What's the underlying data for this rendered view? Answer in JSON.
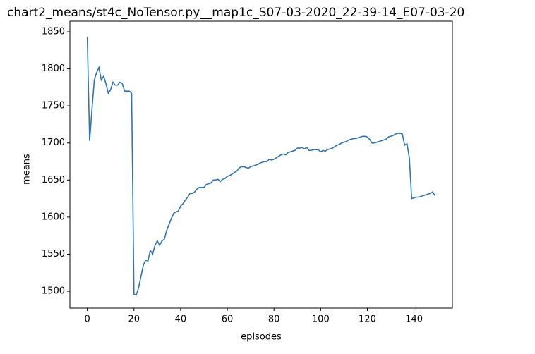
{
  "chart_data": {
    "type": "line",
    "title": "chart2_means/st4c_NoTensor.py__map1c_S07-03-2020_22-39-14_E07-03-20",
    "x_label": "episodes",
    "y_label": "means",
    "x": [
      0,
      1,
      2,
      3,
      4,
      5,
      6,
      7,
      8,
      9,
      10,
      11,
      12,
      13,
      14,
      15,
      16,
      17,
      18,
      19,
      20,
      21,
      22,
      23,
      24,
      25,
      26,
      27,
      28,
      29,
      30,
      31,
      32,
      33,
      34,
      35,
      36,
      37,
      38,
      39,
      40,
      41,
      42,
      43,
      44,
      45,
      46,
      47,
      48,
      49,
      50,
      51,
      52,
      53,
      54,
      55,
      56,
      57,
      58,
      59,
      60,
      61,
      62,
      63,
      64,
      65,
      66,
      67,
      68,
      69,
      70,
      71,
      72,
      73,
      74,
      75,
      76,
      77,
      78,
      79,
      80,
      81,
      82,
      83,
      84,
      85,
      86,
      87,
      88,
      89,
      90,
      91,
      92,
      93,
      94,
      95,
      96,
      97,
      98,
      99,
      100,
      101,
      102,
      103,
      104,
      105,
      106,
      107,
      108,
      109,
      110,
      111,
      112,
      113,
      114,
      115,
      116,
      117,
      118,
      119,
      120,
      121,
      122,
      123,
      124,
      125,
      126,
      127,
      128,
      129,
      130,
      131,
      132,
      133,
      134,
      135,
      136,
      137,
      138,
      139,
      140,
      141,
      142,
      143,
      144,
      145,
      146,
      147,
      148,
      149
    ],
    "values": [
      1843,
      1703,
      1745,
      1785,
      1795,
      1802,
      1785,
      1790,
      1780,
      1767,
      1772,
      1782,
      1778,
      1778,
      1782,
      1780,
      1770,
      1770,
      1770,
      1767,
      1496,
      1495,
      1505,
      1520,
      1535,
      1542,
      1541,
      1555,
      1550,
      1562,
      1568,
      1562,
      1568,
      1570,
      1582,
      1590,
      1598,
      1605,
      1607,
      1608,
      1615,
      1618,
      1623,
      1627,
      1632,
      1632,
      1634,
      1638,
      1640,
      1640,
      1640,
      1644,
      1645,
      1646,
      1650,
      1650,
      1651,
      1648,
      1651,
      1652,
      1655,
      1656,
      1658,
      1660,
      1662,
      1666,
      1668,
      1668,
      1667,
      1666,
      1668,
      1669,
      1670,
      1671,
      1673,
      1674,
      1675,
      1675,
      1678,
      1677,
      1678,
      1680,
      1682,
      1684,
      1685,
      1684,
      1687,
      1688,
      1689,
      1690,
      1693,
      1693,
      1694,
      1692,
      1694,
      1690,
      1690,
      1691,
      1691,
      1691,
      1688,
      1690,
      1689,
      1691,
      1692,
      1693,
      1695,
      1697,
      1698,
      1700,
      1701,
      1702,
      1704,
      1705,
      1706,
      1706,
      1707,
      1708,
      1709,
      1709,
      1708,
      1705,
      1700,
      1700,
      1701,
      1702,
      1703,
      1704,
      1705,
      1708,
      1709,
      1710,
      1712,
      1713,
      1713,
      1712,
      1697,
      1699,
      1680,
      1625,
      1626,
      1627,
      1627,
      1628,
      1629,
      1630,
      1631,
      1632,
      1634,
      1629
    ],
    "color": "#3274b0",
    "xlim": [
      -7.45,
      156.45
    ],
    "xticks": [
      0,
      20,
      40,
      60,
      80,
      100,
      120,
      140
    ],
    "ylim": [
      1477.2,
      1864.3
    ],
    "yticks": [
      1500,
      1550,
      1600,
      1650,
      1700,
      1750,
      1800,
      1850
    ]
  }
}
